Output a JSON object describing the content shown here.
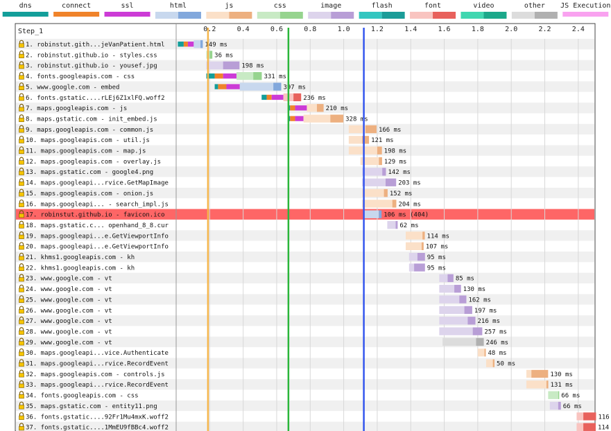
{
  "step_label": "Step_1",
  "legend": [
    {
      "label": "dns",
      "colors": [
        "#139e9a"
      ]
    },
    {
      "label": "connect",
      "colors": [
        "#f0832a"
      ]
    },
    {
      "label": "ssl",
      "colors": [
        "#cc3bd6"
      ]
    },
    {
      "label": "html",
      "colors": [
        "#c8d8ee",
        "#82a8dc"
      ]
    },
    {
      "label": "js",
      "colors": [
        "#fbe0c8",
        "#edb080"
      ]
    },
    {
      "label": "css",
      "colors": [
        "#c8eac4",
        "#96d48e"
      ]
    },
    {
      "label": "image",
      "colors": [
        "#ddd4ec",
        "#b89ed6"
      ]
    },
    {
      "label": "flash",
      "colors": [
        "#33c6c0",
        "#1a9c98"
      ]
    },
    {
      "label": "font",
      "colors": [
        "#f9c4c0",
        "#e8615c"
      ]
    },
    {
      "label": "video",
      "colors": [
        "#40d7b0",
        "#1ba88a"
      ]
    },
    {
      "label": "other",
      "colors": [
        "#dcdcdc",
        "#b0b0b0"
      ]
    },
    {
      "label": "JS Execution",
      "colors": [
        "#f9a2f0"
      ]
    }
  ],
  "chart_data": {
    "type": "waterfall",
    "title": "Step_1",
    "xlabel": "Time (s)",
    "xlim": [
      0,
      2.5
    ],
    "ticks": [
      "0.2",
      "0.4",
      "0.6",
      "0.8",
      "1.0",
      "1.2",
      "1.4",
      "1.6",
      "1.8",
      "2.0",
      "2.2",
      "2.4"
    ],
    "tick_values": [
      0.2,
      0.4,
      0.6,
      0.8,
      1.0,
      1.2,
      1.4,
      1.6,
      1.8,
      2.0,
      2.2,
      2.4
    ],
    "markers": [
      {
        "name": "start render",
        "time": 0.19,
        "color": "#f5b54a"
      },
      {
        "name": "dom content loaded",
        "time": 0.67,
        "color": "#2ab63a"
      },
      {
        "name": "on load",
        "time": 1.12,
        "color": "#3355ee"
      }
    ],
    "highlight_row": 17,
    "requests": [
      {
        "n": 1,
        "label": "1. robinstut.gith...jeVanPatient.html",
        "type": "html",
        "start": 0.01,
        "dns": 0.035,
        "connect": 0.025,
        "ssl": 0.035,
        "ttfb": 0.04,
        "download": 0.014,
        "duration_label": "149 ms"
      },
      {
        "n": 2,
        "label": "2. robinstut.github.io - styles.css",
        "type": "css",
        "start": 0.18,
        "ttfb": 0.02,
        "download": 0.016,
        "duration_label": "36 ms"
      },
      {
        "n": 3,
        "label": "3. robinstut.github.io - yousef.jpg",
        "type": "image",
        "start": 0.18,
        "ttfb": 0.1,
        "download": 0.098,
        "duration_label": "198 ms"
      },
      {
        "n": 4,
        "label": "4. fonts.googleapis.com - css",
        "type": "css",
        "start": 0.18,
        "dns": 0.05,
        "connect": 0.05,
        "ssl": 0.08,
        "ttfb": 0.1,
        "download": 0.051,
        "duration_label": "331 ms"
      },
      {
        "n": 5,
        "label": "5. www.google.com - embed",
        "type": "html",
        "start": 0.23,
        "dns": 0.02,
        "connect": 0.05,
        "ssl": 0.08,
        "ttfb": 0.2,
        "download": 0.047,
        "duration_label": "397 ms"
      },
      {
        "n": 6,
        "label": "6. fonts.gstatic....rLEj6Z1xlFQ.woff2",
        "type": "font",
        "start": 0.51,
        "dns": 0.03,
        "connect": 0.03,
        "ssl": 0.07,
        "ttfb": 0.06,
        "download": 0.046,
        "duration_label": "236 ms"
      },
      {
        "n": 7,
        "label": "7. maps.googleapis.com - js",
        "type": "js",
        "start": 0.67,
        "dns": 0.01,
        "connect": 0.03,
        "ssl": 0.07,
        "ttfb": 0.06,
        "download": 0.04,
        "duration_label": "210 ms"
      },
      {
        "n": 8,
        "label": "8. maps.gstatic.com - init_embed.js",
        "type": "js",
        "start": 0.67,
        "dns": 0.01,
        "connect": 0.03,
        "ssl": 0.05,
        "ttfb": 0.16,
        "download": 0.078,
        "duration_label": "328 ms"
      },
      {
        "n": 9,
        "label": "9. maps.googleapis.com - common.js",
        "type": "js",
        "start": 1.03,
        "ttfb": 0.1,
        "download": 0.066,
        "duration_label": "166 ms"
      },
      {
        "n": 10,
        "label": "10. maps.googleapis.com - util.js",
        "type": "js",
        "start": 1.03,
        "ttfb": 0.08,
        "download": 0.041,
        "duration_label": "121 ms"
      },
      {
        "n": 11,
        "label": "11. maps.googleapis.com - map.js",
        "type": "js",
        "start": 1.03,
        "ttfb": 0.17,
        "download": 0.028,
        "duration_label": "198 ms"
      },
      {
        "n": 12,
        "label": "12. maps.googleapis.com - overlay.js",
        "type": "js",
        "start": 1.1,
        "ttfb": 0.11,
        "download": 0.019,
        "duration_label": "129 ms"
      },
      {
        "n": 13,
        "label": "13. maps.gstatic.com - google4.png",
        "type": "image",
        "start": 1.11,
        "ttfb": 0.12,
        "download": 0.022,
        "duration_label": "142 ms"
      },
      {
        "n": 14,
        "label": "14. maps.googleapi...rvice.GetMapImage",
        "type": "image",
        "start": 1.11,
        "ttfb": 0.14,
        "download": 0.063,
        "duration_label": "203 ms"
      },
      {
        "n": 15,
        "label": "15. maps.googleapis.com - onion.js",
        "type": "js",
        "start": 1.11,
        "ttfb": 0.13,
        "download": 0.022,
        "duration_label": "152 ms"
      },
      {
        "n": 16,
        "label": "16. maps.googleapi... - search_impl.js",
        "type": "js",
        "start": 1.11,
        "ttfb": 0.18,
        "download": 0.024,
        "duration_label": "204 ms"
      },
      {
        "n": 17,
        "label": "17. robinstut.github.io - favicon.ico",
        "type": "html",
        "start": 1.12,
        "ttfb": 0.09,
        "download": 0.016,
        "duration_label": "106 ms (404)"
      },
      {
        "n": 18,
        "label": "18. maps.gstatic.c... openhand_8_8.cur",
        "type": "image",
        "start": 1.26,
        "ttfb": 0.05,
        "download": 0.012,
        "duration_label": "62 ms"
      },
      {
        "n": 19,
        "label": "19. maps.googleapi...e.GetViewportInfo",
        "type": "js",
        "start": 1.37,
        "ttfb": 0.1,
        "download": 0.014,
        "duration_label": "114 ms"
      },
      {
        "n": 20,
        "label": "20. maps.googleapi...e.GetViewportInfo",
        "type": "js",
        "start": 1.37,
        "ttfb": 0.095,
        "download": 0.012,
        "duration_label": "107 ms"
      },
      {
        "n": 21,
        "label": "21. khms1.googleapis.com - kh",
        "type": "image",
        "start": 1.39,
        "ttfb": 0.05,
        "download": 0.045,
        "duration_label": "95 ms"
      },
      {
        "n": 22,
        "label": "22. khms1.googleapis.com - kh",
        "type": "image",
        "start": 1.39,
        "ttfb": 0.03,
        "download": 0.065,
        "duration_label": "95 ms"
      },
      {
        "n": 23,
        "label": "23. www.google.com - vt",
        "type": "image",
        "start": 1.57,
        "ttfb": 0.05,
        "download": 0.035,
        "duration_label": "85 ms"
      },
      {
        "n": 24,
        "label": "24. www.google.com - vt",
        "type": "image",
        "start": 1.57,
        "ttfb": 0.09,
        "download": 0.04,
        "duration_label": "130 ms"
      },
      {
        "n": 25,
        "label": "25. www.google.com - vt",
        "type": "image",
        "start": 1.57,
        "ttfb": 0.12,
        "download": 0.042,
        "duration_label": "162 ms"
      },
      {
        "n": 26,
        "label": "26. www.google.com - vt",
        "type": "image",
        "start": 1.57,
        "ttfb": 0.15,
        "download": 0.047,
        "duration_label": "197 ms"
      },
      {
        "n": 27,
        "label": "27. www.google.com - vt",
        "type": "image",
        "start": 1.57,
        "ttfb": 0.17,
        "download": 0.046,
        "duration_label": "216 ms"
      },
      {
        "n": 28,
        "label": "28. www.google.com - vt",
        "type": "image",
        "start": 1.57,
        "ttfb": 0.2,
        "download": 0.057,
        "duration_label": "257 ms"
      },
      {
        "n": 29,
        "label": "29. www.google.com - vt",
        "type": "other",
        "start": 1.59,
        "ttfb": 0.2,
        "download": 0.046,
        "duration_label": "246 ms"
      },
      {
        "n": 30,
        "label": "30. maps.googleapi...vice.Authenticate",
        "type": "js",
        "start": 1.8,
        "ttfb": 0.04,
        "download": 0.008,
        "duration_label": "48 ms"
      },
      {
        "n": 31,
        "label": "31. maps.googleapi...rvice.RecordEvent",
        "type": "js",
        "start": 1.85,
        "ttfb": 0.04,
        "download": 0.01,
        "duration_label": "50 ms"
      },
      {
        "n": 32,
        "label": "32. maps.googleapis.com - controls.js",
        "type": "js",
        "start": 2.09,
        "ttfb": 0.03,
        "download": 0.1,
        "duration_label": "130 ms"
      },
      {
        "n": 33,
        "label": "33. maps.googleapi...rvice.RecordEvent",
        "type": "js",
        "start": 2.09,
        "ttfb": 0.12,
        "download": 0.011,
        "duration_label": "131 ms"
      },
      {
        "n": 34,
        "label": "34. fonts.googleapis.com - css",
        "type": "css",
        "start": 2.22,
        "ttfb": 0.06,
        "download": 0.006,
        "duration_label": "66 ms"
      },
      {
        "n": 35,
        "label": "35. maps.gstatic.com - entity11.png",
        "type": "image",
        "start": 2.23,
        "ttfb": 0.05,
        "download": 0.016,
        "duration_label": "66 ms"
      },
      {
        "n": 36,
        "label": "36. fonts.gstatic....92Fr1Mu4mxK.woff2",
        "type": "font",
        "start": 2.39,
        "ttfb": 0.04,
        "download": 0.076,
        "duration_label": "116 ms"
      },
      {
        "n": 37,
        "label": "37. fonts.gstatic....1MmEU9fBBc4.woff2",
        "type": "font",
        "start": 2.39,
        "ttfb": 0.04,
        "download": 0.074,
        "duration_label": "114 ms"
      }
    ]
  }
}
